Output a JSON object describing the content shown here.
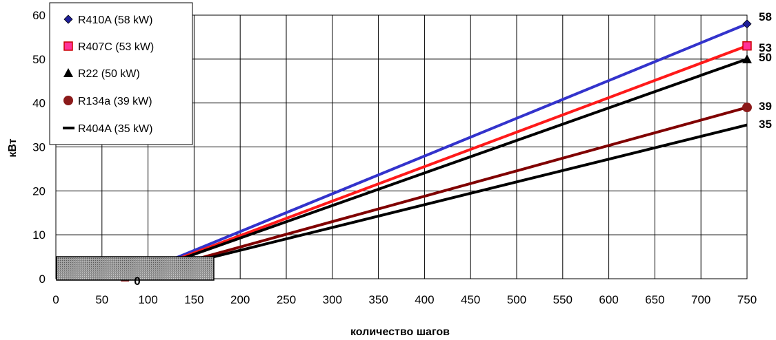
{
  "chart_data": {
    "type": "line",
    "title": "",
    "xlabel": "количество шагов",
    "ylabel": "кВт",
    "xlim": [
      0,
      750
    ],
    "ylim": [
      0,
      60
    ],
    "xticks": [
      0,
      50,
      100,
      150,
      200,
      250,
      300,
      350,
      400,
      450,
      500,
      550,
      600,
      650,
      700,
      750
    ],
    "yticks": [
      0,
      10,
      20,
      30,
      40,
      50,
      60
    ],
    "grid": true,
    "legend_position": "top-left",
    "series": [
      {
        "name": "R410A (58 kW)",
        "color": "#3333cc",
        "marker": "diamond",
        "marker_color": "#1f1f99",
        "end_label": "58",
        "points": [
          [
            75,
            0
          ],
          [
            750,
            58
          ]
        ]
      },
      {
        "name": "R407C (53 kW)",
        "color": "#ff1a1a",
        "marker": "square",
        "marker_color": "#ff3399",
        "end_label": "53",
        "points": [
          [
            75,
            0
          ],
          [
            750,
            53
          ]
        ]
      },
      {
        "name": "R22 (50 kW)",
        "color": "#000000",
        "marker": "triangle",
        "marker_color": "#000000",
        "end_label": "50",
        "points": [
          [
            75,
            0
          ],
          [
            750,
            50
          ]
        ]
      },
      {
        "name": "R134a (39 kW)",
        "color": "#800000",
        "marker": "circle",
        "marker_color": "#8b1a1a",
        "end_label": "39",
        "points": [
          [
            75,
            0
          ],
          [
            750,
            39
          ]
        ]
      },
      {
        "name": "R404A (35 kW)",
        "color": "#000000",
        "marker": "dash",
        "marker_color": "#000000",
        "end_label": "35",
        "points": [
          [
            75,
            0
          ],
          [
            750,
            35
          ]
        ]
      }
    ],
    "start_label": "0"
  }
}
